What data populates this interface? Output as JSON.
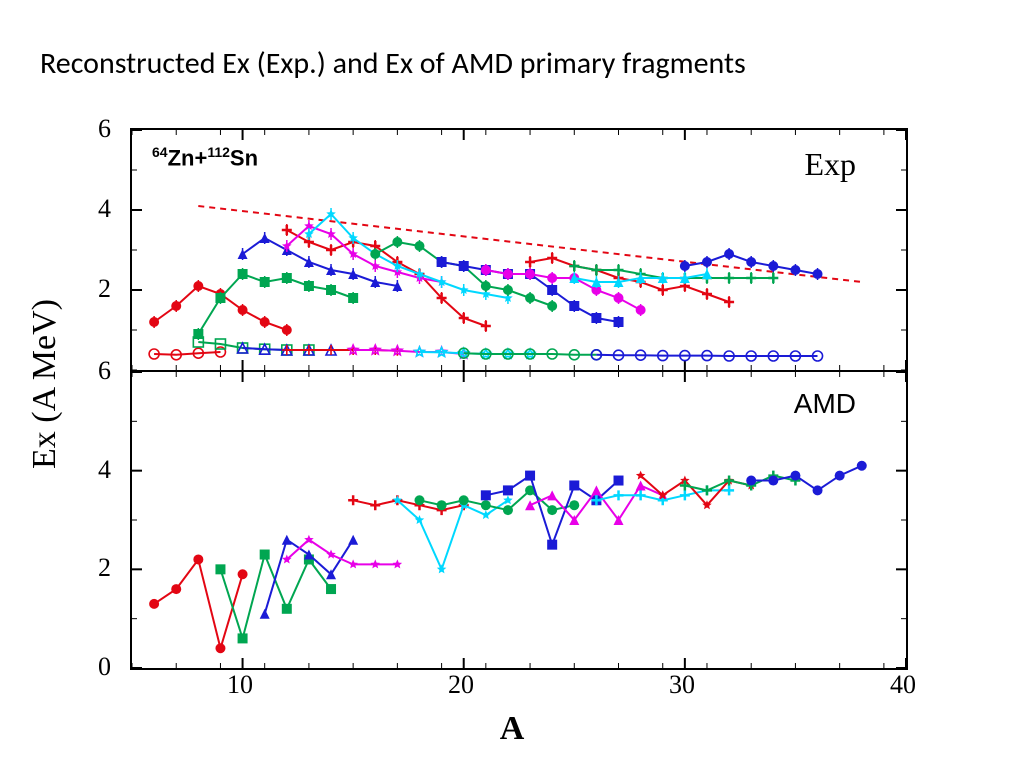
{
  "title": "Reconstructed Ex (Exp.) and Ex of AMD primary  fragments",
  "yaxis_label": "Ex (A MeV)",
  "xaxis_label": "A",
  "xlim": [
    5,
    40
  ],
  "xticks": [
    10,
    20,
    30,
    40
  ],
  "top": {
    "label": "Exp",
    "reaction_html": "<sup>64</sup>Zn+<sup>112</sup>Sn",
    "ylim": [
      0,
      6
    ],
    "y_visible_min": 0.3,
    "yticks": [
      2,
      4,
      6
    ],
    "trend_line": {
      "color": "#e30613",
      "dash": "6 5",
      "width": 2,
      "points": [
        [
          8,
          4.1
        ],
        [
          38,
          2.2
        ]
      ]
    },
    "series_filled": [
      {
        "color": "#e30613",
        "marker": "circle",
        "pts": [
          [
            6,
            1.2
          ],
          [
            7,
            1.6
          ],
          [
            8,
            2.1
          ],
          [
            9,
            1.9
          ],
          [
            10,
            1.5
          ],
          [
            11,
            1.2
          ],
          [
            12,
            1.0
          ]
        ]
      },
      {
        "color": "#00a651",
        "marker": "square",
        "pts": [
          [
            8,
            0.9
          ],
          [
            9,
            1.8
          ],
          [
            10,
            2.4
          ],
          [
            11,
            2.2
          ],
          [
            12,
            2.3
          ],
          [
            13,
            2.1
          ],
          [
            14,
            2.0
          ],
          [
            15,
            1.8
          ]
        ]
      },
      {
        "color": "#1b1bd6",
        "marker": "triangle",
        "pts": [
          [
            10,
            2.9
          ],
          [
            11,
            3.3
          ],
          [
            12,
            3.0
          ],
          [
            13,
            2.7
          ],
          [
            14,
            2.5
          ],
          [
            15,
            2.4
          ],
          [
            16,
            2.2
          ],
          [
            17,
            2.1
          ]
        ]
      },
      {
        "color": "#e30613",
        "marker": "plus",
        "pts": [
          [
            12,
            3.5
          ],
          [
            13,
            3.2
          ],
          [
            14,
            3.0
          ],
          [
            15,
            3.2
          ],
          [
            16,
            3.1
          ],
          [
            17,
            2.7
          ],
          [
            18,
            2.4
          ],
          [
            19,
            1.8
          ],
          [
            20,
            1.3
          ],
          [
            21,
            1.1
          ]
        ]
      },
      {
        "color": "#e800e8",
        "marker": "star",
        "pts": [
          [
            12,
            3.1
          ],
          [
            13,
            3.6
          ],
          [
            14,
            3.4
          ],
          [
            15,
            2.9
          ],
          [
            16,
            2.6
          ],
          [
            17,
            2.45
          ],
          [
            18,
            2.3
          ],
          [
            19,
            2.2
          ]
        ]
      },
      {
        "color": "#00d8ff",
        "marker": "star",
        "pts": [
          [
            13,
            3.4
          ],
          [
            14,
            3.9
          ],
          [
            15,
            3.3
          ],
          [
            16,
            2.9
          ],
          [
            17,
            2.6
          ],
          [
            18,
            2.4
          ],
          [
            19,
            2.2
          ],
          [
            20,
            2.0
          ],
          [
            21,
            1.9
          ],
          [
            22,
            1.8
          ]
        ]
      },
      {
        "color": "#00a651",
        "marker": "circle",
        "pts": [
          [
            16,
            2.9
          ],
          [
            17,
            3.2
          ],
          [
            18,
            3.1
          ],
          [
            19,
            2.7
          ],
          [
            20,
            2.6
          ],
          [
            21,
            2.1
          ],
          [
            22,
            2.0
          ],
          [
            23,
            1.8
          ],
          [
            24,
            1.6
          ]
        ]
      },
      {
        "color": "#1b1bd6",
        "marker": "square",
        "pts": [
          [
            19,
            2.7
          ],
          [
            20,
            2.6
          ],
          [
            21,
            2.5
          ],
          [
            22,
            2.4
          ],
          [
            23,
            2.4
          ],
          [
            24,
            2.0
          ],
          [
            25,
            1.6
          ],
          [
            26,
            1.3
          ],
          [
            27,
            1.2
          ]
        ]
      },
      {
        "color": "#e800e8",
        "marker": "circle",
        "pts": [
          [
            21,
            2.5
          ],
          [
            22,
            2.4
          ],
          [
            23,
            2.4
          ],
          [
            24,
            2.3
          ],
          [
            25,
            2.3
          ],
          [
            26,
            2.0
          ],
          [
            27,
            1.8
          ],
          [
            28,
            1.5
          ]
        ]
      },
      {
        "color": "#e30613",
        "marker": "plus",
        "pts": [
          [
            23,
            2.7
          ],
          [
            24,
            2.8
          ],
          [
            25,
            2.6
          ],
          [
            26,
            2.5
          ],
          [
            27,
            2.3
          ],
          [
            28,
            2.2
          ],
          [
            29,
            2.0
          ],
          [
            30,
            2.1
          ],
          [
            31,
            1.9
          ],
          [
            32,
            1.7
          ]
        ]
      },
      {
        "color": "#00a651",
        "marker": "plus",
        "pts": [
          [
            25,
            2.6
          ],
          [
            26,
            2.5
          ],
          [
            27,
            2.5
          ],
          [
            28,
            2.4
          ],
          [
            29,
            2.3
          ],
          [
            30,
            2.3
          ],
          [
            31,
            2.3
          ],
          [
            32,
            2.3
          ],
          [
            33,
            2.3
          ],
          [
            34,
            2.3
          ]
        ]
      },
      {
        "color": "#00d8ff",
        "marker": "triangle",
        "pts": [
          [
            25,
            2.3
          ],
          [
            26,
            2.2
          ],
          [
            27,
            2.2
          ],
          [
            28,
            2.3
          ],
          [
            29,
            2.3
          ],
          [
            30,
            2.3
          ],
          [
            31,
            2.4
          ]
        ]
      },
      {
        "color": "#1b1bd6",
        "marker": "circle",
        "pts": [
          [
            30,
            2.6
          ],
          [
            31,
            2.7
          ],
          [
            32,
            2.9
          ],
          [
            33,
            2.7
          ],
          [
            34,
            2.6
          ],
          [
            35,
            2.5
          ],
          [
            36,
            2.4
          ]
        ]
      }
    ],
    "series_open": [
      {
        "color": "#e30613",
        "marker": "circle",
        "pts": [
          [
            6,
            0.4
          ],
          [
            7,
            0.38
          ],
          [
            8,
            0.42
          ],
          [
            9,
            0.45
          ]
        ]
      },
      {
        "color": "#00a651",
        "marker": "square",
        "pts": [
          [
            8,
            0.7
          ],
          [
            9,
            0.65
          ],
          [
            10,
            0.55
          ],
          [
            11,
            0.52
          ],
          [
            12,
            0.5
          ],
          [
            13,
            0.5
          ]
        ]
      },
      {
        "color": "#1b1bd6",
        "marker": "triangle",
        "pts": [
          [
            10,
            0.55
          ],
          [
            11,
            0.52
          ],
          [
            12,
            0.5
          ],
          [
            13,
            0.5
          ],
          [
            14,
            0.5
          ]
        ]
      },
      {
        "color": "#e30613",
        "marker": "plus",
        "pts": [
          [
            12,
            0.5
          ],
          [
            13,
            0.5
          ],
          [
            14,
            0.5
          ],
          [
            15,
            0.5
          ],
          [
            16,
            0.5
          ],
          [
            17,
            0.48
          ]
        ]
      },
      {
        "color": "#e800e8",
        "marker": "star",
        "pts": [
          [
            15,
            0.5
          ],
          [
            16,
            0.5
          ],
          [
            17,
            0.48
          ],
          [
            18,
            0.45
          ],
          [
            19,
            0.45
          ],
          [
            20,
            0.4
          ]
        ]
      },
      {
        "color": "#00d8ff",
        "marker": "star",
        "pts": [
          [
            18,
            0.45
          ],
          [
            19,
            0.44
          ],
          [
            20,
            0.42
          ],
          [
            21,
            0.4
          ],
          [
            22,
            0.4
          ],
          [
            23,
            0.4
          ]
        ]
      },
      {
        "color": "#00a651",
        "marker": "circle",
        "pts": [
          [
            20,
            0.42
          ],
          [
            21,
            0.4
          ],
          [
            22,
            0.4
          ],
          [
            23,
            0.4
          ],
          [
            24,
            0.4
          ],
          [
            25,
            0.38
          ],
          [
            26,
            0.38
          ]
        ]
      },
      {
        "color": "#1b1bd6",
        "marker": "circle",
        "pts": [
          [
            26,
            0.38
          ],
          [
            27,
            0.37
          ],
          [
            28,
            0.37
          ],
          [
            29,
            0.36
          ],
          [
            30,
            0.36
          ],
          [
            31,
            0.36
          ],
          [
            32,
            0.35
          ],
          [
            33,
            0.35
          ],
          [
            34,
            0.35
          ],
          [
            35,
            0.35
          ],
          [
            36,
            0.35
          ]
        ]
      }
    ]
  },
  "bottom": {
    "label": "AMD",
    "ylim": [
      0,
      6
    ],
    "yticks": [
      0,
      2,
      4,
      6
    ],
    "series": [
      {
        "color": "#e30613",
        "marker": "circle",
        "pts": [
          [
            6,
            1.3
          ],
          [
            7,
            1.6
          ],
          [
            8,
            2.2
          ],
          [
            9,
            0.4
          ],
          [
            10,
            1.9
          ]
        ]
      },
      {
        "color": "#00a651",
        "marker": "square",
        "pts": [
          [
            9,
            2.0
          ],
          [
            10,
            0.6
          ],
          [
            11,
            2.3
          ],
          [
            12,
            1.2
          ],
          [
            13,
            2.2
          ],
          [
            14,
            1.6
          ]
        ]
      },
      {
        "color": "#1b1bd6",
        "marker": "triangle",
        "pts": [
          [
            11,
            1.1
          ],
          [
            12,
            2.6
          ],
          [
            13,
            2.3
          ],
          [
            14,
            1.9
          ],
          [
            15,
            2.6
          ]
        ]
      },
      {
        "color": "#e800e8",
        "marker": "star",
        "pts": [
          [
            12,
            2.2
          ],
          [
            13,
            2.6
          ],
          [
            14,
            2.3
          ],
          [
            15,
            2.1
          ],
          [
            16,
            2.1
          ],
          [
            17,
            2.1
          ]
        ]
      },
      {
        "color": "#e30613",
        "marker": "plus",
        "pts": [
          [
            15,
            3.4
          ],
          [
            16,
            3.3
          ],
          [
            17,
            3.4
          ],
          [
            18,
            3.3
          ],
          [
            19,
            3.2
          ],
          [
            20,
            3.3
          ]
        ]
      },
      {
        "color": "#00d8ff",
        "marker": "star",
        "pts": [
          [
            17,
            3.4
          ],
          [
            18,
            3.0
          ],
          [
            19,
            2.0
          ],
          [
            20,
            3.3
          ],
          [
            21,
            3.1
          ],
          [
            22,
            3.4
          ]
        ]
      },
      {
        "color": "#00a651",
        "marker": "circle",
        "pts": [
          [
            18,
            3.4
          ],
          [
            19,
            3.3
          ],
          [
            20,
            3.4
          ],
          [
            21,
            3.3
          ],
          [
            22,
            3.2
          ],
          [
            23,
            3.6
          ],
          [
            24,
            3.2
          ],
          [
            25,
            3.3
          ]
        ]
      },
      {
        "color": "#1b1bd6",
        "marker": "square",
        "pts": [
          [
            21,
            3.5
          ],
          [
            22,
            3.6
          ],
          [
            23,
            3.9
          ],
          [
            24,
            2.5
          ],
          [
            25,
            3.7
          ],
          [
            26,
            3.4
          ],
          [
            27,
            3.8
          ]
        ]
      },
      {
        "color": "#e800e8",
        "marker": "triangle",
        "pts": [
          [
            23,
            3.3
          ],
          [
            24,
            3.5
          ],
          [
            25,
            3.0
          ],
          [
            26,
            3.6
          ],
          [
            27,
            3.0
          ],
          [
            28,
            3.7
          ],
          [
            29,
            3.5
          ]
        ]
      },
      {
        "color": "#00d8ff",
        "marker": "plus",
        "pts": [
          [
            26,
            3.4
          ],
          [
            27,
            3.5
          ],
          [
            28,
            3.5
          ],
          [
            29,
            3.4
          ],
          [
            30,
            3.5
          ],
          [
            31,
            3.6
          ],
          [
            32,
            3.6
          ]
        ]
      },
      {
        "color": "#e30613",
        "marker": "star",
        "pts": [
          [
            28,
            3.9
          ],
          [
            29,
            3.5
          ],
          [
            30,
            3.8
          ],
          [
            31,
            3.3
          ],
          [
            32,
            3.8
          ],
          [
            33,
            3.7
          ]
        ]
      },
      {
        "color": "#00a651",
        "marker": "plus",
        "pts": [
          [
            30,
            3.7
          ],
          [
            31,
            3.6
          ],
          [
            32,
            3.8
          ],
          [
            33,
            3.7
          ],
          [
            34,
            3.9
          ],
          [
            35,
            3.8
          ]
        ]
      },
      {
        "color": "#1b1bd6",
        "marker": "circle",
        "pts": [
          [
            33,
            3.8
          ],
          [
            34,
            3.8
          ],
          [
            35,
            3.9
          ],
          [
            36,
            3.6
          ],
          [
            37,
            3.9
          ],
          [
            38,
            4.1
          ]
        ]
      }
    ]
  },
  "style": {
    "tick_font_size": 26,
    "axis_color": "#000000",
    "line_width": 2,
    "marker_size": 5,
    "background": "#ffffff"
  }
}
